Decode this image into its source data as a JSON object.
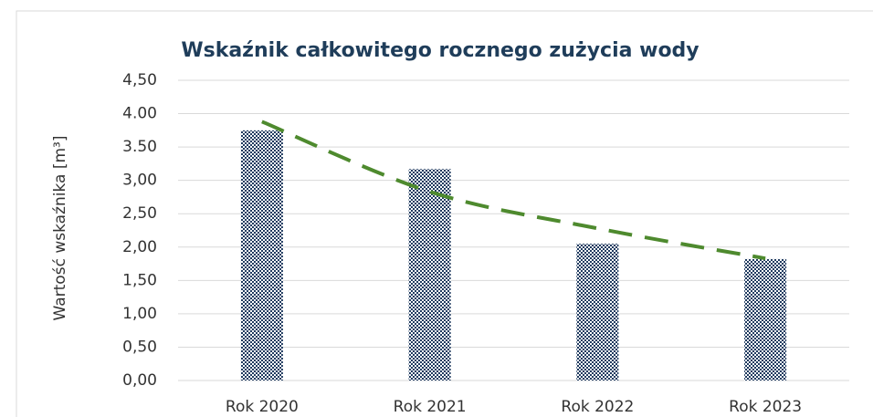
{
  "chart_data": {
    "type": "bar",
    "title": "Wskaźnik całkowitego rocznego zużycia wody",
    "y_label": "Wartość wskaźnika [m³]",
    "categories": [
      "Rok 2020",
      "Rok 2021",
      "Rok 2022",
      "Rok 2023"
    ],
    "values": [
      3.75,
      3.17,
      2.05,
      1.82
    ],
    "color": "#1f3a5f",
    "trendline": {
      "values": [
        3.88,
        2.83,
        2.28,
        1.83
      ],
      "color": "#4e8a2e"
    },
    "ylim": [
      0,
      4.5
    ],
    "yticks": [
      {
        "value": 0,
        "label": "0,00"
      },
      {
        "value": 0.5,
        "label": "0,50"
      },
      {
        "value": 1,
        "label": "1,00"
      },
      {
        "value": 1.5,
        "label": "1,50"
      },
      {
        "value": 2,
        "label": "2,00"
      },
      {
        "value": 2.5,
        "label": "2,50"
      },
      {
        "value": 3,
        "label": "3,00"
      },
      {
        "value": 3.5,
        "label": "3.50"
      },
      {
        "value": 4,
        "label": "4.00"
      },
      {
        "value": 4.5,
        "label": "4,50"
      }
    ],
    "grid": true
  }
}
